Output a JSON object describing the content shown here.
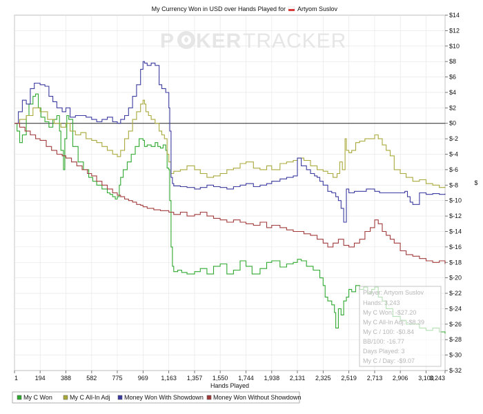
{
  "chart_data": {
    "type": "line",
    "title_prefix": "My Currency Won in USD over Hands Played for",
    "player_name": "Artyom Suslov",
    "watermark": {
      "part1": "P",
      "part2": "KER",
      "part3": "TRACKER"
    },
    "xlabel": "Hands Played",
    "ylabel": "$",
    "x_ticks": [
      1,
      194,
      388,
      582,
      775,
      969,
      1163,
      1357,
      1550,
      1744,
      1938,
      2131,
      2325,
      2519,
      2713,
      2906,
      3100,
      3243
    ],
    "x_tick_labels": [
      "1",
      "194",
      "388",
      "582",
      "775",
      "969",
      "1,163",
      "1,357",
      "1,550",
      "1,744",
      "1,938",
      "2,131",
      "2,325",
      "2,519",
      "2,713",
      "2,906",
      "3,100",
      "3,243"
    ],
    "xlim": [
      1,
      3243
    ],
    "ylim": [
      -32,
      14
    ],
    "y_ticks": [
      14,
      12,
      10,
      8,
      6,
      4,
      2,
      0,
      -2,
      -4,
      -6,
      -8,
      -10,
      -12,
      -14,
      -16,
      -18,
      -20,
      -22,
      -24,
      -26,
      -28,
      -30,
      -32
    ],
    "y_tick_labels": [
      "$14",
      "$12",
      "$10",
      "$8",
      "$6",
      "$4",
      "$2",
      "$0",
      "$-2",
      "$-4",
      "$-6",
      "$-8",
      "$-10",
      "$-12",
      "$-14",
      "$-16",
      "$-18",
      "$-20",
      "$-22",
      "$-24",
      "$-26",
      "$-28",
      "$-30",
      "$-32"
    ],
    "grid": true,
    "series": [
      {
        "name": "My C Won",
        "color": "#2ea82e",
        "x": [
          1,
          20,
          40,
          60,
          90,
          110,
          140,
          160,
          180,
          200,
          230,
          260,
          290,
          320,
          340,
          350,
          370,
          380,
          395,
          410,
          440,
          480,
          520,
          560,
          590,
          620,
          660,
          700,
          720,
          740,
          760,
          775,
          790,
          800,
          820,
          850,
          880,
          910,
          940,
          969,
          980,
          1000,
          1030,
          1060,
          1080,
          1100,
          1120,
          1140,
          1150,
          1163,
          1170,
          1180,
          1190,
          1200,
          1230,
          1260,
          1300,
          1357,
          1400,
          1450,
          1500,
          1550,
          1600,
          1650,
          1700,
          1744,
          1790,
          1850,
          1900,
          1938,
          2000,
          2050,
          2100,
          2131,
          2160,
          2200,
          2250,
          2300,
          2325,
          2340,
          2360,
          2390,
          2410,
          2420,
          2440,
          2460,
          2480,
          2500,
          2519,
          2540,
          2570,
          2600,
          2630,
          2660,
          2690,
          2713,
          2740,
          2770,
          2800,
          2850,
          2906,
          2950,
          3000,
          3050,
          3100,
          3150,
          3200,
          3243
        ],
        "y": [
          0,
          -1,
          -2.5,
          -1.5,
          1,
          2.5,
          3.5,
          3.8,
          2,
          0.8,
          0.2,
          -0.5,
          0.5,
          1,
          -1,
          -3.5,
          -6,
          -2,
          1,
          0.5,
          -3,
          -5,
          -6,
          -7,
          -7.5,
          -8,
          -8.5,
          -9,
          -9.2,
          -9.5,
          -9.8,
          -9.5,
          -8,
          -7,
          -6,
          -5,
          -4,
          -3,
          -2,
          -2.2,
          -3,
          -2.8,
          -3,
          -2.5,
          -3,
          -3.2,
          -2.8,
          -3.5,
          -5.8,
          -6,
          -10,
          -16,
          -18.5,
          -19.2,
          -19,
          -19.3,
          -19.5,
          -19.2,
          -18.8,
          -19.5,
          -18.5,
          -18.2,
          -19.5,
          -19,
          -17.8,
          -18.5,
          -19.5,
          -18.8,
          -18,
          -17.8,
          -18.6,
          -18.2,
          -18,
          -17.6,
          -17.8,
          -18.5,
          -19,
          -20,
          -21,
          -22.5,
          -23,
          -23.5,
          -24.5,
          -26.5,
          -24,
          -24.8,
          -23,
          -22.5,
          -21.5,
          -21.8,
          -21,
          -21.5,
          -21.2,
          -22,
          -21.5,
          -21.2,
          -22.5,
          -23,
          -24,
          -25,
          -25.5,
          -26,
          -26,
          -26.5,
          -26.8,
          -26.5,
          -27,
          -27.2
        ]
      },
      {
        "name": "My C All-In Adj",
        "color": "#a8a83a",
        "x": [
          1,
          40,
          90,
          140,
          194,
          250,
          300,
          350,
          388,
          420,
          460,
          500,
          540,
          582,
          620,
          660,
          700,
          740,
          775,
          800,
          830,
          860,
          890,
          920,
          950,
          969,
          980,
          990,
          1010,
          1030,
          1060,
          1090,
          1110,
          1130,
          1150,
          1163,
          1180,
          1200,
          1250,
          1300,
          1357,
          1400,
          1450,
          1500,
          1550,
          1600,
          1650,
          1700,
          1744,
          1800,
          1850,
          1900,
          1938,
          2000,
          2050,
          2100,
          2131,
          2180,
          2230,
          2280,
          2325,
          2360,
          2400,
          2430,
          2450,
          2470,
          2490,
          2500,
          2519,
          2540,
          2570,
          2600,
          2640,
          2680,
          2713,
          2740,
          2770,
          2800,
          2830,
          2860,
          2906,
          2950,
          3000,
          3050,
          3100,
          3150,
          3200,
          3243
        ],
        "y": [
          0,
          0.5,
          1,
          2,
          1.5,
          0.5,
          0,
          -0.5,
          0,
          -1,
          -1.5,
          -1.2,
          -2,
          -2.2,
          -2.5,
          -3,
          -3.5,
          -4,
          -4.3,
          -3.5,
          -2,
          -1,
          0.5,
          1.5,
          2.5,
          3,
          2.5,
          1.5,
          1,
          0.5,
          0,
          -1,
          -1.5,
          -2,
          -4,
          -5,
          -6.5,
          -6.2,
          -6,
          -5.5,
          -6,
          -6.5,
          -7,
          -6.8,
          -6.5,
          -6,
          -5.8,
          -5.2,
          -5,
          -5.8,
          -6,
          -5.5,
          -6,
          -5.2,
          -5,
          -4.8,
          -4.5,
          -4.8,
          -5.5,
          -6,
          -6.2,
          -6.5,
          -7,
          -6.5,
          -5,
          -6,
          -2,
          -3.5,
          -3.8,
          -3.5,
          -2.5,
          -2.3,
          -2,
          -2,
          -1.5,
          -2,
          -2.8,
          -3.5,
          -4.2,
          -6,
          -6.5,
          -7,
          -7.5,
          -7.3,
          -7.8,
          -8,
          -8.3,
          -8.2
        ]
      },
      {
        "name": "Money Won With Showdown",
        "color": "#3a3aa0",
        "x": [
          1,
          30,
          60,
          90,
          120,
          150,
          194,
          230,
          260,
          290,
          320,
          360,
          388,
          420,
          460,
          500,
          540,
          582,
          620,
          660,
          700,
          740,
          775,
          800,
          830,
          860,
          890,
          920,
          950,
          969,
          980,
          1000,
          1030,
          1060,
          1090,
          1110,
          1140,
          1160,
          1163,
          1170,
          1180,
          1190,
          1200,
          1250,
          1300,
          1357,
          1400,
          1450,
          1500,
          1550,
          1600,
          1650,
          1700,
          1744,
          1800,
          1850,
          1900,
          1938,
          2000,
          2050,
          2100,
          2131,
          2160,
          2200,
          2230,
          2260,
          2280,
          2300,
          2325,
          2360,
          2390,
          2420,
          2440,
          2460,
          2480,
          2500,
          2519,
          2560,
          2600,
          2650,
          2713,
          2750,
          2800,
          2850,
          2906,
          2940,
          2960,
          2980,
          3000,
          3050,
          3100,
          3150,
          3200,
          3243
        ],
        "y": [
          0,
          1.5,
          3,
          2.5,
          4.5,
          5.2,
          5,
          4.8,
          3.5,
          2.8,
          2,
          1.5,
          2,
          0.8,
          1,
          1,
          0.8,
          0.5,
          0.2,
          0.5,
          0.8,
          0.2,
          0,
          0.5,
          1,
          2,
          3.5,
          5,
          7,
          8,
          7.8,
          7.5,
          7.8,
          7.5,
          5,
          4.5,
          4,
          4,
          2,
          -1,
          -7,
          -7.8,
          -8.1,
          -8.2,
          -8.3,
          -8.5,
          -8.3,
          -8,
          -8.2,
          -8.3,
          -8.5,
          -8.2,
          -8,
          -7.8,
          -8.2,
          -8,
          -7.8,
          -7.5,
          -7.2,
          -7,
          -6.8,
          -4.5,
          -5.5,
          -6,
          -6.5,
          -6.8,
          -7,
          -7.5,
          -8,
          -8.8,
          -9,
          -9.5,
          -10,
          -11,
          -12.8,
          -8.5,
          -9,
          -8.8,
          -8.8,
          -8.5,
          -8.8,
          -9,
          -9,
          -9,
          -9,
          -8.8,
          -9.5,
          -10.2,
          -10.5,
          -9,
          -9.2,
          -9.1,
          -9.2,
          -9.1
        ]
      },
      {
        "name": "Money Won Without Showdown",
        "color": "#a03a3a",
        "x": [
          1,
          40,
          80,
          120,
          160,
          194,
          240,
          280,
          320,
          360,
          388,
          430,
          470,
          510,
          550,
          582,
          620,
          660,
          700,
          740,
          775,
          800,
          830,
          860,
          890,
          920,
          950,
          969,
          1000,
          1050,
          1100,
          1163,
          1200,
          1250,
          1300,
          1357,
          1400,
          1450,
          1500,
          1550,
          1600,
          1650,
          1700,
          1744,
          1800,
          1850,
          1900,
          1938,
          2000,
          2050,
          2100,
          2131,
          2180,
          2230,
          2280,
          2325,
          2360,
          2400,
          2440,
          2480,
          2519,
          2560,
          2600,
          2640,
          2680,
          2713,
          2740,
          2770,
          2800,
          2830,
          2860,
          2906,
          2950,
          3000,
          3050,
          3100,
          3150,
          3200,
          3243
        ],
        "y": [
          0,
          -0.5,
          -1,
          -1.5,
          -2,
          -2.2,
          -3,
          -3.5,
          -4,
          -4.2,
          -4.5,
          -5,
          -5.5,
          -6,
          -6.5,
          -6.8,
          -7.5,
          -8,
          -8.5,
          -9,
          -9.3,
          -9.5,
          -9.8,
          -10,
          -10.2,
          -10.5,
          -10.6,
          -10.8,
          -11,
          -11.2,
          -11.3,
          -11.5,
          -11.8,
          -11.5,
          -12,
          -11.8,
          -11.5,
          -12,
          -12.3,
          -12.5,
          -12.8,
          -12.5,
          -12.8,
          -13,
          -13.2,
          -12.8,
          -13.5,
          -13.2,
          -13.5,
          -13.8,
          -14,
          -14,
          -14.3,
          -14.5,
          -15,
          -15.5,
          -16,
          -15.5,
          -15,
          -15.8,
          -16,
          -15.5,
          -15,
          -14,
          -13.5,
          -12.5,
          -13,
          -14,
          -14.5,
          -15,
          -15.5,
          -16.5,
          -17,
          -17.2,
          -17.5,
          -17.8,
          -18,
          -17.8,
          -18.2
        ]
      }
    ],
    "stats": {
      "player": "Player: Artyom Suslov",
      "hands": "Hands: 3,243",
      "won": "My C Won: -$27.20",
      "allin": "My C All-In Adj: -$8.39",
      "per100": "My C / 100: -$0.84",
      "bb100": "BB/100: -16.77",
      "days": "Days Played: 3",
      "perday": "My C / Day: -$9.07"
    },
    "legend": [
      {
        "label": "My C Won",
        "color": "#2ea82e"
      },
      {
        "label": "My C All-In Adj",
        "color": "#a8a83a"
      },
      {
        "label": "Money Won With Showdown",
        "color": "#3a3aa0"
      },
      {
        "label": "Money Won Without Showdown",
        "color": "#a03a3a"
      }
    ]
  }
}
